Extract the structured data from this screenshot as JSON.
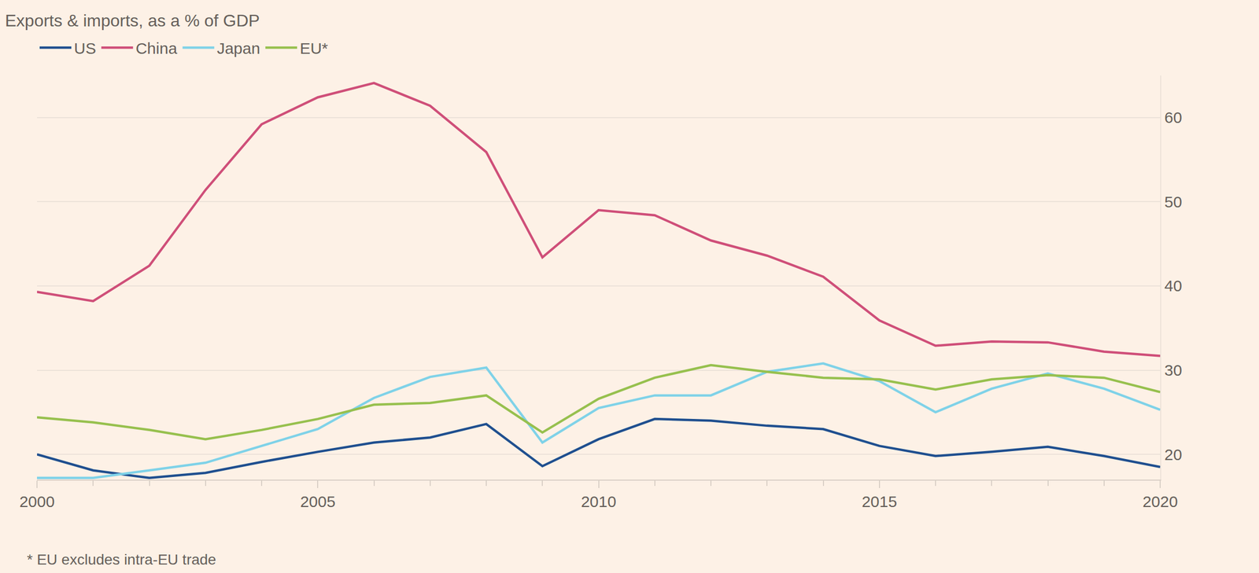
{
  "chart_data": {
    "type": "line",
    "title": "Exports & imports, as a % of GDP",
    "annotations": [
      "* EU excludes intra-EU trade"
    ],
    "x": [
      2000,
      2001,
      2002,
      2003,
      2004,
      2005,
      2006,
      2007,
      2008,
      2009,
      2010,
      2011,
      2012,
      2013,
      2014,
      2015,
      2016,
      2017,
      2018,
      2019,
      2020
    ],
    "series": [
      {
        "name": "US",
        "color": "#1f4f8f",
        "values": [
          20.0,
          18.1,
          17.2,
          17.8,
          19.1,
          20.3,
          21.4,
          22.0,
          23.6,
          18.6,
          21.8,
          24.2,
          24.0,
          23.4,
          23.0,
          21.0,
          19.8,
          20.3,
          20.9,
          19.8,
          18.5
        ]
      },
      {
        "name": "China",
        "color": "#cf4f79",
        "values": [
          39.3,
          38.2,
          42.4,
          51.4,
          59.2,
          62.4,
          64.1,
          61.4,
          55.9,
          43.4,
          49.0,
          48.4,
          45.4,
          43.6,
          41.1,
          35.9,
          32.9,
          33.4,
          33.3,
          32.2,
          31.7
        ]
      },
      {
        "name": "Japan",
        "color": "#7fd2e8",
        "values": [
          17.2,
          17.2,
          18.1,
          19.0,
          21.0,
          23.0,
          26.7,
          29.2,
          30.3,
          21.4,
          25.5,
          27.0,
          27.0,
          29.8,
          30.8,
          28.7,
          25.0,
          27.8,
          29.6,
          27.8,
          25.3
        ]
      },
      {
        "name": "EU*",
        "color": "#97c04e",
        "values": [
          24.4,
          23.8,
          22.9,
          21.8,
          22.9,
          24.2,
          25.9,
          26.1,
          27.0,
          22.6,
          26.6,
          29.1,
          30.6,
          29.8,
          29.1,
          28.9,
          27.7,
          28.9,
          29.4,
          29.1,
          27.4
        ]
      }
    ],
    "xlim": [
      2000,
      2020
    ],
    "xticks": [
      2000,
      2005,
      2010,
      2015,
      2020
    ],
    "ylim": [
      17,
      65
    ],
    "yticks": [
      20,
      30,
      40,
      50,
      60
    ],
    "grid": true,
    "legend": "top-left"
  }
}
